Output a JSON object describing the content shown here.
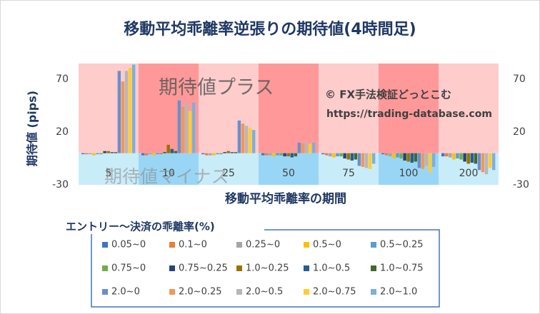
{
  "chart_data": {
    "type": "bar",
    "title": "移動平均乖離率逆張りの期待値(4時間足)",
    "x_label": "移動平均乖離率の期間",
    "y_label": "期待値 (pips)",
    "legend_title": "エントリー～決済の乖離率(%)",
    "annotations": [
      "期待値プラス",
      "期待値マイナス",
      "© FX手法検証どっとこむ",
      "https://trading-database.com"
    ],
    "categories": [
      "5",
      "10",
      "25",
      "50",
      "75",
      "100",
      "200"
    ],
    "ylim": [
      -30,
      85
    ],
    "yticks": [
      -30,
      20,
      70
    ],
    "series": [
      {
        "name": "0.05~0",
        "color": "#4472c4",
        "values": [
          -1,
          -2,
          -1,
          -2,
          -1,
          -1,
          -3
        ]
      },
      {
        "name": "0.1~0",
        "color": "#ed7d31",
        "values": [
          -1,
          -2,
          -2,
          -2,
          -2,
          -2,
          -3
        ]
      },
      {
        "name": "0.25~0",
        "color": "#a5a5a5",
        "values": [
          -1,
          -1,
          -2,
          -2,
          -3,
          -3,
          -4
        ]
      },
      {
        "name": "0.5~0",
        "color": "#ffc000",
        "values": [
          -2,
          -2,
          -2,
          -3,
          -4,
          -5,
          -6
        ]
      },
      {
        "name": "0.5~0.25",
        "color": "#5b9bd5",
        "values": [
          -1,
          -1,
          -1,
          -2,
          -3,
          -4,
          -5
        ]
      },
      {
        "name": "0.75~0",
        "color": "#70ad47",
        "values": [
          -1,
          -1,
          -1,
          -2,
          -3,
          -5,
          -6
        ]
      },
      {
        "name": "0.75~0.25",
        "color": "#264478",
        "values": [
          2,
          1,
          1,
          -3,
          -5,
          -7,
          -8
        ]
      },
      {
        "name": "1.0~0.25",
        "color": "#997300",
        "values": [
          2,
          8,
          2,
          -3,
          -6,
          -8,
          -10
        ]
      },
      {
        "name": "1.0~0.5",
        "color": "#255e91",
        "values": [
          1,
          4,
          1,
          -4,
          -7,
          -9,
          -9
        ]
      },
      {
        "name": "1.0~0.75",
        "color": "#43682b",
        "values": [
          1,
          2,
          1,
          -3,
          -6,
          -8,
          -10
        ]
      },
      {
        "name": "2.0~0",
        "color": "#698ed0",
        "values": [
          78,
          50,
          31,
          10,
          -12,
          -14,
          -16
        ]
      },
      {
        "name": "2.0~0.25",
        "color": "#f1975a",
        "values": [
          68,
          44,
          28,
          9,
          -13,
          -15,
          -18
        ]
      },
      {
        "name": "2.0~0.5",
        "color": "#b7b7b7",
        "values": [
          78,
          47,
          26,
          10,
          -14,
          -12,
          -20
        ]
      },
      {
        "name": "2.0~0.75",
        "color": "#ffcd33",
        "values": [
          81,
          40,
          24,
          9,
          -15,
          -18,
          -14
        ]
      },
      {
        "name": "2.0~1.0",
        "color": "#7cafdd",
        "values": [
          84,
          48,
          22,
          10,
          -10,
          -13,
          -16
        ]
      }
    ]
  }
}
